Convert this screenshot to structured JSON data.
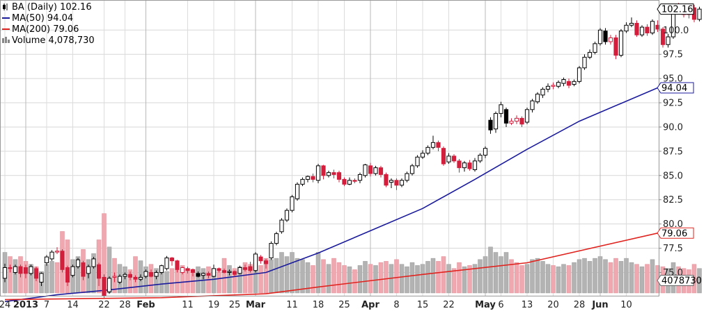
{
  "chart_data": {
    "type": "candlestick",
    "legend": [
      {
        "label": "BA (Daily) 102.16",
        "icon": "candle-icon",
        "color": "#000000"
      },
      {
        "label": "MA(50) 94.04",
        "icon": "line-icon",
        "color": "#1a1a9c"
      },
      {
        "label": "MA(200) 79.06",
        "icon": "line-icon",
        "color": "#e0231e"
      },
      {
        "label": "Volume 4,078,730",
        "icon": "volume-icon",
        "color": "#888888"
      }
    ],
    "ylim": [
      72.6,
      103.1
    ],
    "y_ticks": [
      75.0,
      77.5,
      80.0,
      82.5,
      85.0,
      87.5,
      90.0,
      92.5,
      95.0,
      97.5,
      100.0
    ],
    "y_tick_labels": [
      "75.0",
      "77.5",
      "80.0",
      "82.5",
      "85.0",
      "87.5",
      "90.0",
      "92.5",
      "95.0",
      "97.5",
      "100.0"
    ],
    "x_ticks": [
      {
        "label": "24",
        "bold": false,
        "i": 0
      },
      {
        "label": "2013",
        "bold": true,
        "i": 4
      },
      {
        "label": "7",
        "bold": false,
        "i": 8
      },
      {
        "label": "14",
        "bold": false,
        "i": 13
      },
      {
        "label": "22",
        "bold": false,
        "i": 19
      },
      {
        "label": "28",
        "bold": false,
        "i": 23
      },
      {
        "label": "Feb",
        "bold": true,
        "i": 27
      },
      {
        "label": "11",
        "bold": false,
        "i": 35
      },
      {
        "label": "19",
        "bold": false,
        "i": 40
      },
      {
        "label": "25",
        "bold": false,
        "i": 44
      },
      {
        "label": "Mar",
        "bold": true,
        "i": 48
      },
      {
        "label": "11",
        "bold": false,
        "i": 55
      },
      {
        "label": "18",
        "bold": false,
        "i": 60
      },
      {
        "label": "25",
        "bold": false,
        "i": 65
      },
      {
        "label": "Apr",
        "bold": true,
        "i": 70
      },
      {
        "label": "8",
        "bold": false,
        "i": 75
      },
      {
        "label": "15",
        "bold": false,
        "i": 80
      },
      {
        "label": "22",
        "bold": false,
        "i": 85
      },
      {
        "label": "May",
        "bold": true,
        "i": 92
      },
      {
        "label": "6",
        "bold": false,
        "i": 95
      },
      {
        "label": "13",
        "bold": false,
        "i": 100
      },
      {
        "label": "20",
        "bold": false,
        "i": 105
      },
      {
        "label": "28",
        "bold": false,
        "i": 110
      },
      {
        "label": "Jun",
        "bold": true,
        "i": 114
      },
      {
        "label": "10",
        "bold": false,
        "i": 119
      }
    ],
    "last_price_tag": "102.16",
    "ma50_tag": "94.04",
    "ma200_tag": "79.06",
    "volume_tag": "4078730",
    "volume_max": 12000000,
    "series": [
      {
        "name": "MA(50)",
        "points": [
          [
            0,
            72.0
          ],
          [
            10,
            72.7
          ],
          [
            20,
            73.2
          ],
          [
            30,
            73.8
          ],
          [
            40,
            74.3
          ],
          [
            50,
            75.0
          ],
          [
            60,
            77.0
          ],
          [
            70,
            79.3
          ],
          [
            80,
            81.6
          ],
          [
            90,
            84.6
          ],
          [
            100,
            87.7
          ],
          [
            110,
            90.6
          ],
          [
            125,
            94.04
          ]
        ]
      },
      {
        "name": "MA(200)",
        "points": [
          [
            0,
            72.2
          ],
          [
            30,
            72.4
          ],
          [
            50,
            72.8
          ],
          [
            60,
            73.5
          ],
          [
            80,
            74.8
          ],
          [
            100,
            76.0
          ],
          [
            125,
            79.06
          ]
        ]
      }
    ],
    "candles": [
      [
        74.4,
        75.5,
        74.0,
        75.9,
        0,
        6.8
      ],
      [
        75.5,
        75.4,
        75.0,
        75.8,
        1,
        6.1
      ],
      [
        75.0,
        75.6,
        74.8,
        75.8,
        0,
        5.6
      ],
      [
        75.6,
        74.9,
        74.5,
        75.8,
        1,
        6.1
      ],
      [
        75.5,
        74.9,
        74.4,
        75.8,
        1,
        5.3
      ],
      [
        74.9,
        75.6,
        74.7,
        75.8,
        0,
        4.8
      ],
      [
        75.4,
        74.4,
        74.1,
        75.6,
        1,
        4.4
      ],
      [
        74.0,
        74.9,
        73.6,
        75.0,
        0,
        3.6
      ],
      [
        76.0,
        76.6,
        75.7,
        76.8,
        0,
        4.8
      ],
      [
        76.4,
        77.1,
        76.2,
        77.3,
        0,
        5.3
      ],
      [
        77.1,
        77.2,
        76.9,
        77.6,
        1,
        5.1
      ],
      [
        77.2,
        75.3,
        75.0,
        77.4,
        1,
        10.3
      ],
      [
        75.5,
        74.0,
        73.6,
        75.7,
        1,
        8.9
      ],
      [
        74.7,
        75.6,
        74.5,
        75.8,
        0,
        5.6
      ],
      [
        75.6,
        76.3,
        75.4,
        76.5,
        0,
        6.1
      ],
      [
        76.0,
        74.6,
        74.2,
        76.2,
        1,
        7.3
      ],
      [
        74.9,
        75.6,
        74.4,
        75.8,
        0,
        5.6
      ],
      [
        75.6,
        76.4,
        75.4,
        76.6,
        0,
        6.6
      ],
      [
        75.8,
        74.4,
        73.6,
        76.0,
        1,
        8.9
      ],
      [
        74.5,
        72.6,
        72.4,
        74.8,
        1,
        13.3
      ],
      [
        73.0,
        74.4,
        72.8,
        74.6,
        0,
        7.7
      ],
      [
        74.5,
        74.6,
        74.0,
        75.0,
        1,
        5.8
      ],
      [
        74.0,
        74.6,
        73.8,
        74.8,
        0,
        4.8
      ],
      [
        74.6,
        74.8,
        74.3,
        75.0,
        0,
        4.4
      ],
      [
        74.8,
        74.5,
        74.2,
        75.1,
        1,
        3.9
      ],
      [
        74.5,
        74.3,
        74.0,
        74.7,
        1,
        6.1
      ],
      [
        74.3,
        74.5,
        74.1,
        74.8,
        0,
        5.4
      ],
      [
        74.6,
        75.1,
        74.4,
        75.3,
        0,
        4.4
      ],
      [
        75.0,
        74.6,
        74.5,
        75.3,
        1,
        4.8
      ],
      [
        74.6,
        75.0,
        74.3,
        75.2,
        0,
        4.1
      ],
      [
        75.0,
        75.7,
        74.8,
        75.8,
        0,
        3.4
      ],
      [
        75.4,
        76.5,
        75.2,
        76.7,
        0,
        3.6
      ],
      [
        76.5,
        76.2,
        75.7,
        76.6,
        1,
        4.1
      ],
      [
        76.2,
        75.3,
        75.0,
        76.3,
        1,
        3.9
      ],
      [
        75.0,
        75.5,
        74.8,
        75.6,
        1,
        4.6
      ],
      [
        75.4,
        75.2,
        74.9,
        75.6,
        1,
        4.1
      ],
      [
        75.3,
        75.0,
        74.6,
        75.4,
        1,
        3.9
      ],
      [
        74.9,
        74.6,
        74.5,
        75.1,
        0,
        4.4
      ],
      [
        74.7,
        74.9,
        74.3,
        75.0,
        0,
        4.1
      ],
      [
        74.9,
        74.7,
        74.4,
        75.1,
        1,
        4.4
      ],
      [
        74.6,
        75.4,
        74.5,
        75.8,
        0,
        4.1
      ],
      [
        75.4,
        75.2,
        75.0,
        75.5,
        1,
        3.6
      ],
      [
        75.2,
        75.0,
        74.9,
        75.4,
        1,
        5.8
      ],
      [
        75.0,
        75.1,
        74.7,
        75.3,
        0,
        4.6
      ],
      [
        75.1,
        74.8,
        74.6,
        75.2,
        1,
        4.1
      ],
      [
        74.9,
        75.5,
        74.8,
        75.7,
        0,
        4.4
      ],
      [
        75.5,
        75.3,
        75.1,
        75.8,
        1,
        5.1
      ],
      [
        75.6,
        75.2,
        75.0,
        76.1,
        1,
        4.8
      ],
      [
        75.2,
        76.9,
        75.0,
        77.1,
        0,
        5.1
      ],
      [
        76.6,
        76.2,
        75.9,
        76.8,
        1,
        4.6
      ],
      [
        76.2,
        75.9,
        75.4,
        76.4,
        1,
        5.8
      ],
      [
        76.5,
        78.0,
        76.3,
        78.2,
        0,
        5.6
      ],
      [
        78.0,
        79.0,
        77.8,
        79.2,
        0,
        5.8
      ],
      [
        79.2,
        80.4,
        79.0,
        80.6,
        0,
        6.8
      ],
      [
        80.4,
        81.4,
        80.2,
        81.6,
        0,
        6.1
      ],
      [
        81.4,
        82.8,
        81.2,
        83.0,
        0,
        6.8
      ],
      [
        82.6,
        84.1,
        82.4,
        84.3,
        0,
        5.8
      ],
      [
        84.1,
        84.6,
        83.9,
        84.8,
        0,
        5.6
      ],
      [
        84.6,
        84.9,
        84.3,
        85.0,
        0,
        5.1
      ],
      [
        84.9,
        84.6,
        84.3,
        85.2,
        1,
        4.6
      ],
      [
        84.5,
        86.0,
        84.2,
        86.2,
        0,
        6.8
      ],
      [
        86.0,
        85.0,
        84.6,
        86.1,
        1,
        5.6
      ],
      [
        85.0,
        85.3,
        84.8,
        85.5,
        0,
        4.8
      ],
      [
        85.3,
        85.1,
        84.7,
        85.6,
        1,
        5.8
      ],
      [
        85.3,
        84.6,
        84.3,
        85.5,
        1,
        5.1
      ],
      [
        84.6,
        84.1,
        83.9,
        84.8,
        1,
        4.6
      ],
      [
        84.1,
        84.5,
        84.0,
        84.8,
        0,
        4.4
      ],
      [
        84.5,
        84.4,
        84.2,
        84.7,
        1,
        3.9
      ],
      [
        84.5,
        85.1,
        84.2,
        85.3,
        0,
        4.6
      ],
      [
        85.0,
        86.1,
        84.8,
        86.2,
        0,
        5.3
      ],
      [
        86.0,
        85.2,
        84.9,
        86.3,
        1,
        4.8
      ],
      [
        85.2,
        85.8,
        85.0,
        86.0,
        0,
        4.6
      ],
      [
        85.8,
        85.1,
        84.8,
        86.0,
        1,
        5.1
      ],
      [
        85.1,
        84.0,
        83.8,
        85.3,
        1,
        5.3
      ],
      [
        84.3,
        84.5,
        83.7,
        84.7,
        0,
        4.8
      ],
      [
        84.5,
        84.0,
        83.5,
        84.7,
        1,
        5.6
      ],
      [
        84.0,
        84.5,
        83.8,
        84.7,
        0,
        4.8
      ],
      [
        84.5,
        85.2,
        84.3,
        85.4,
        0,
        4.4
      ],
      [
        85.2,
        86.0,
        85.0,
        86.2,
        0,
        5.1
      ],
      [
        86.0,
        86.9,
        85.8,
        87.1,
        0,
        4.6
      ],
      [
        86.9,
        87.3,
        86.7,
        87.6,
        0,
        4.8
      ],
      [
        87.3,
        87.9,
        87.1,
        88.1,
        0,
        5.3
      ],
      [
        87.9,
        88.4,
        87.7,
        89.1,
        0,
        5.8
      ],
      [
        88.4,
        87.9,
        87.5,
        88.6,
        1,
        5.3
      ],
      [
        87.8,
        86.2,
        86.0,
        88.0,
        1,
        6.1
      ],
      [
        86.4,
        87.0,
        86.2,
        87.3,
        0,
        4.8
      ],
      [
        87.0,
        86.5,
        86.3,
        87.2,
        1,
        4.1
      ],
      [
        86.5,
        85.8,
        85.3,
        86.7,
        1,
        5.1
      ],
      [
        85.8,
        86.3,
        85.4,
        86.5,
        0,
        4.4
      ],
      [
        86.3,
        85.7,
        85.5,
        86.6,
        1,
        4.6
      ],
      [
        85.6,
        86.5,
        85.4,
        86.8,
        0,
        4.8
      ],
      [
        86.5,
        87.1,
        86.3,
        87.3,
        0,
        5.6
      ],
      [
        87.1,
        87.8,
        86.8,
        88.0,
        0,
        6.1
      ],
      [
        90.7,
        89.7,
        89.3,
        91.0,
        0,
        7.7
      ],
      [
        89.8,
        91.4,
        89.4,
        91.6,
        0,
        6.8
      ],
      [
        91.4,
        92.3,
        91.0,
        92.6,
        0,
        6.1
      ],
      [
        91.8,
        90.4,
        90.0,
        92.0,
        0,
        6.8
      ],
      [
        90.4,
        90.6,
        90.2,
        90.9,
        1,
        5.6
      ],
      [
        90.6,
        90.9,
        90.3,
        91.2,
        1,
        5.1
      ],
      [
        90.9,
        90.3,
        90.0,
        91.1,
        1,
        4.6
      ],
      [
        90.5,
        91.8,
        90.3,
        92.0,
        0,
        4.8
      ],
      [
        91.8,
        92.7,
        91.5,
        92.9,
        0,
        5.6
      ],
      [
        92.6,
        93.4,
        92.4,
        93.6,
        0,
        5.8
      ],
      [
        93.3,
        93.9,
        93.0,
        94.1,
        0,
        5.3
      ],
      [
        93.9,
        94.2,
        93.6,
        94.5,
        0,
        4.8
      ],
      [
        94.2,
        94.3,
        93.9,
        94.6,
        1,
        4.6
      ],
      [
        94.2,
        94.6,
        94.0,
        94.8,
        0,
        4.4
      ],
      [
        94.5,
        94.9,
        94.2,
        95.1,
        0,
        4.8
      ],
      [
        94.7,
        94.3,
        94.0,
        95.0,
        1,
        4.6
      ],
      [
        94.4,
        94.7,
        94.2,
        94.9,
        0,
        5.1
      ],
      [
        94.7,
        96.1,
        94.5,
        96.3,
        0,
        5.6
      ],
      [
        96.1,
        97.2,
        95.9,
        97.5,
        0,
        5.8
      ],
      [
        97.2,
        97.7,
        97.0,
        98.0,
        0,
        5.3
      ],
      [
        97.7,
        98.6,
        97.5,
        98.8,
        0,
        5.8
      ],
      [
        98.6,
        100.0,
        98.4,
        100.2,
        0,
        6.1
      ],
      [
        99.9,
        98.8,
        98.5,
        100.2,
        0,
        5.6
      ],
      [
        98.8,
        99.2,
        98.5,
        99.5,
        1,
        5.1
      ],
      [
        99.2,
        97.4,
        97.0,
        99.5,
        1,
        5.8
      ],
      [
        97.4,
        99.9,
        97.2,
        100.1,
        0,
        5.3
      ],
      [
        99.9,
        100.5,
        99.7,
        100.8,
        0,
        5.8
      ],
      [
        100.5,
        100.7,
        100.3,
        101.3,
        0,
        5.1
      ],
      [
        100.7,
        99.5,
        99.3,
        101.0,
        1,
        4.8
      ],
      [
        99.5,
        100.3,
        99.3,
        100.5,
        0,
        4.4
      ],
      [
        100.3,
        99.7,
        99.4,
        100.6,
        1,
        4.8
      ],
      [
        99.7,
        100.9,
        99.5,
        101.1,
        0,
        5.6
      ],
      [
        100.5,
        100.1,
        99.8,
        101.0,
        1,
        4.6
      ],
      [
        100.1,
        98.5,
        98.2,
        100.3,
        1,
        4.4
      ],
      [
        98.5,
        99.3,
        98.2,
        99.6,
        0,
        4.1
      ],
      [
        99.3,
        102.5,
        99.1,
        102.7,
        0,
        5.1
      ],
      [
        102.5,
        102.1,
        101.8,
        102.8,
        1,
        4.4
      ],
      [
        102.1,
        101.6,
        101.3,
        102.5,
        1,
        4.1
      ],
      [
        101.6,
        102.3,
        101.2,
        102.5,
        1,
        3.9
      ],
      [
        102.3,
        101.1,
        100.8,
        102.6,
        1,
        4.8
      ],
      [
        101.1,
        102.16,
        100.9,
        102.4,
        0,
        4.1
      ]
    ]
  }
}
